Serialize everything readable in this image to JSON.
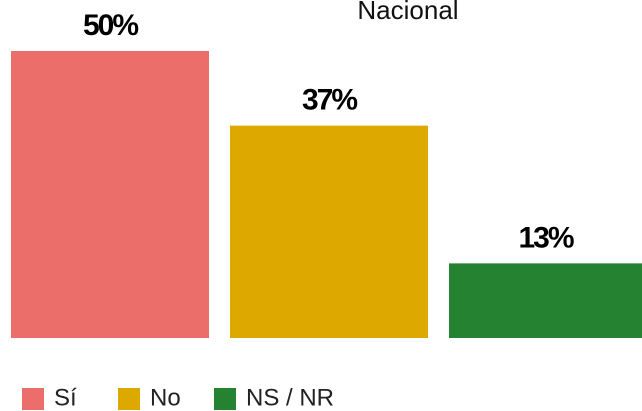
{
  "chart_data": {
    "type": "bar",
    "title": "Nacional",
    "categories": [
      "Sí",
      "No",
      "NS / NR"
    ],
    "values": [
      50,
      37,
      13
    ],
    "value_labels": [
      "50%",
      "37%",
      "13%"
    ],
    "colors": [
      "#eb6e6b",
      "#dda800",
      "#258230"
    ],
    "ylim": [
      0,
      50
    ]
  }
}
